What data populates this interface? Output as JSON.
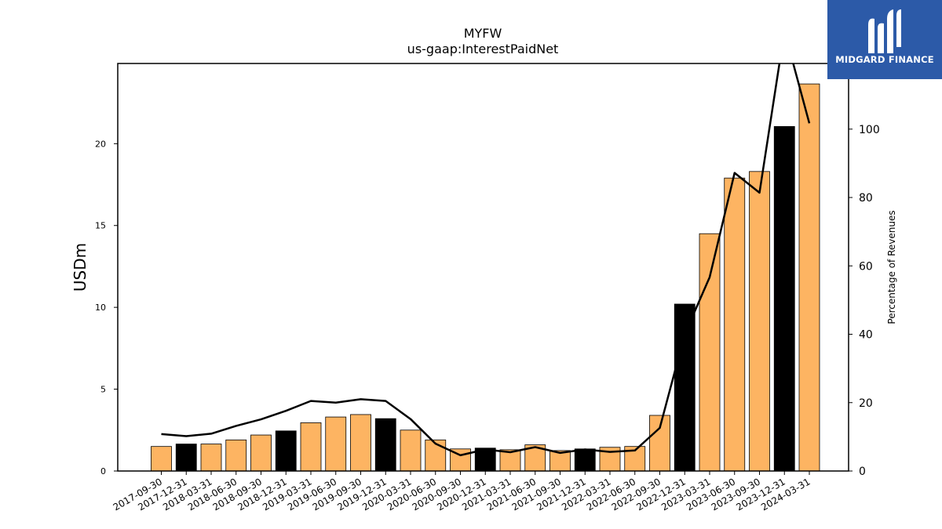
{
  "chart_data": {
    "type": "bar+line",
    "title": "MYFW",
    "subtitle": "us-gaap:InterestPaidNet",
    "ylabel_left": "USDm",
    "ylabel_right": "Percentage of Revenues",
    "ylim_left": [
      0,
      24.9
    ],
    "ylim_right": [
      0,
      119.2
    ],
    "yticks_left": [
      0,
      5,
      10,
      15,
      20
    ],
    "yticks_right": [
      0,
      20,
      40,
      60,
      80,
      100
    ],
    "categories": [
      "2017-09-30",
      "2017-12-31",
      "2018-03-31",
      "2018-06-30",
      "2018-09-30",
      "2018-12-31",
      "2019-03-31",
      "2019-06-30",
      "2019-09-30",
      "2019-12-31",
      "2020-03-31",
      "2020-06-30",
      "2020-09-30",
      "2020-12-31",
      "2021-03-31",
      "2021-06-30",
      "2021-09-30",
      "2021-12-31",
      "2022-03-31",
      "2022-06-30",
      "2022-09-30",
      "2022-12-31",
      "2023-03-31",
      "2023-06-30",
      "2023-09-30",
      "2023-12-31",
      "2024-03-31"
    ],
    "series": [
      {
        "type": "bar",
        "values": [
          1.5,
          1.65,
          1.65,
          1.9,
          2.2,
          2.45,
          2.95,
          3.3,
          3.45,
          3.2,
          2.5,
          1.9,
          1.35,
          1.4,
          1.3,
          1.6,
          1.25,
          1.35,
          1.45,
          1.5,
          3.4,
          10.2,
          14.5,
          17.9,
          18.3,
          21.05,
          23.65
        ],
        "colors": [
          "#fdb462",
          "#000000",
          "#fdb462",
          "#fdb462",
          "#fdb462",
          "#000000",
          "#fdb462",
          "#fdb462",
          "#fdb462",
          "#000000",
          "#fdb462",
          "#fdb462",
          "#fdb462",
          "#000000",
          "#fdb462",
          "#fdb462",
          "#fdb462",
          "#000000",
          "#fdb462",
          "#fdb462",
          "#fdb462",
          "#000000",
          "#fdb462",
          "#fdb462",
          "#fdb462",
          "#000000",
          "#fdb462"
        ]
      },
      {
        "type": "line",
        "axis": "right",
        "values": [
          10.8,
          10.2,
          10.9,
          13.2,
          15.1,
          17.6,
          20.5,
          20.0,
          21.0,
          20.5,
          15.2,
          8.0,
          4.6,
          6.3,
          5.5,
          7.0,
          5.3,
          6.3,
          5.6,
          6.0,
          12.6,
          40.0,
          56.7,
          87.2,
          81.4,
          128.7,
          101.7
        ]
      }
    ],
    "colors": {
      "bar_normal": "#fdb462",
      "bar_highlight": "#000000",
      "line": "#000000"
    }
  },
  "logo": {
    "text": "MIDGARD FINANCE",
    "background": "#2c5aa8",
    "icon": "midgard-logo-icon"
  }
}
